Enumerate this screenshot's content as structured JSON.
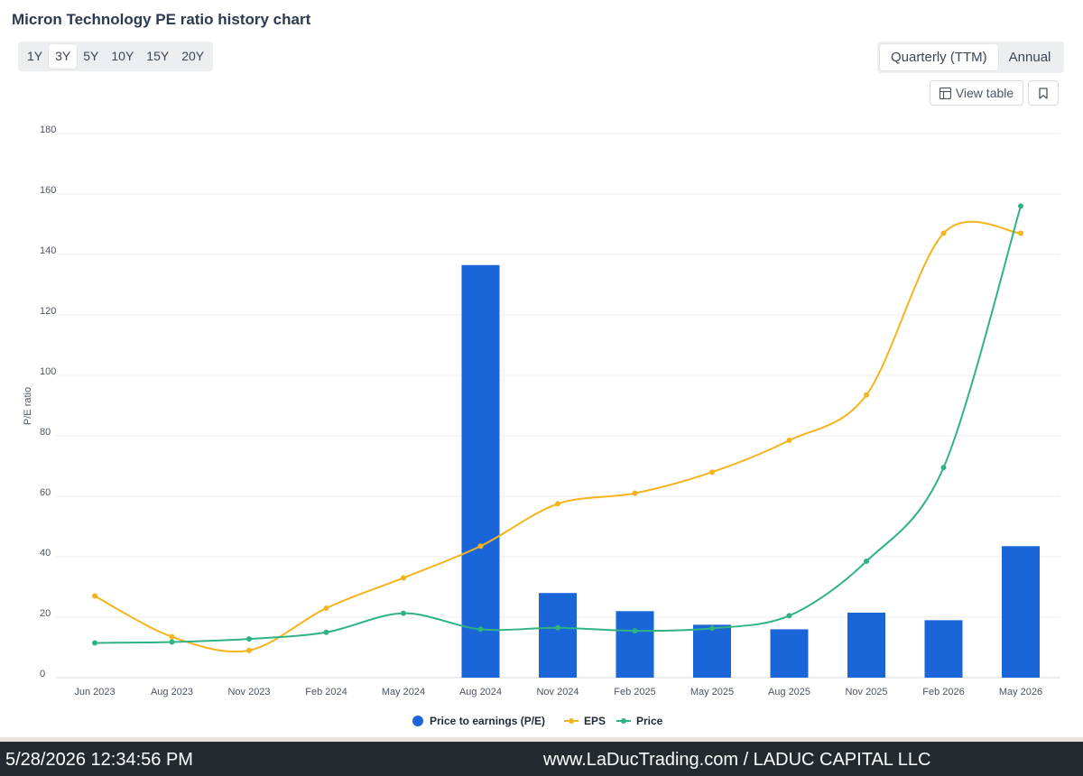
{
  "title": "Micron Technology PE ratio history chart",
  "range_buttons": [
    "1Y",
    "3Y",
    "5Y",
    "10Y",
    "15Y",
    "20Y"
  ],
  "range_selected": "3Y",
  "period_buttons": [
    "Quarterly (TTM)",
    "Annual"
  ],
  "period_selected": "Quarterly (TTM)",
  "view_table_label": "View table",
  "footer": {
    "timestamp": "5/28/2026 12:34:56 PM",
    "site": "www.LaDucTrading.com / LADUC CAPITAL LLC"
  },
  "colors": {
    "bar": "#1a66d9",
    "eps": "#f5b41e",
    "price": "#2fb383",
    "grid": "#ececec"
  },
  "chart_data": {
    "type": "bar",
    "ylabel": "P/E ratio",
    "ylim": [
      0,
      180
    ],
    "yticks": [
      0,
      20,
      40,
      60,
      80,
      100,
      120,
      140,
      160,
      180
    ],
    "grid": true,
    "legend_position": "bottom",
    "categories": [
      "Jun 2023",
      "Aug 2023",
      "Nov 2023",
      "Feb 2024",
      "May 2024",
      "Aug 2024",
      "Nov 2024",
      "Feb 2025",
      "May 2025",
      "Aug 2025",
      "Nov 2025",
      "Feb 2026",
      "May 2026"
    ],
    "series": [
      {
        "name": "Price to earnings (P/E)",
        "type": "bar",
        "values": [
          null,
          null,
          null,
          null,
          null,
          136.5,
          28,
          22,
          17.5,
          16,
          21.5,
          19,
          43.5
        ]
      },
      {
        "name": "EPS",
        "type": "line",
        "values": [
          27,
          13.5,
          9,
          23,
          33,
          43.5,
          57.5,
          61,
          68,
          78.5,
          93.5,
          147,
          147
        ]
      },
      {
        "name": "Price",
        "type": "line",
        "values": [
          11.5,
          11.8,
          12.8,
          15,
          21.3,
          16,
          16.5,
          15.5,
          16.3,
          20.5,
          38.5,
          69.5,
          156
        ]
      }
    ]
  }
}
